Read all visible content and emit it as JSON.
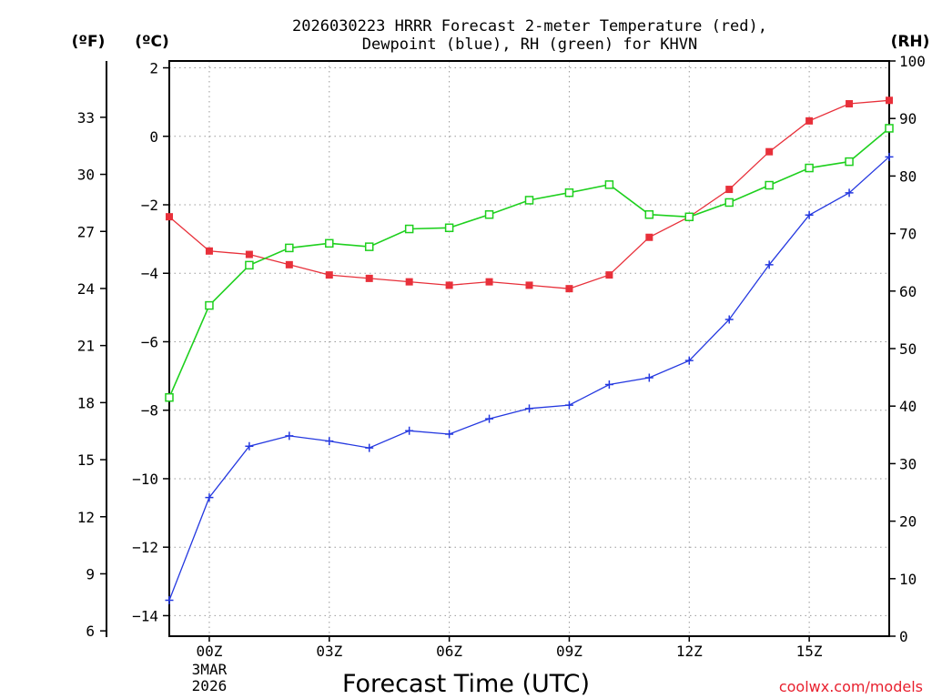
{
  "chart_data": {
    "type": "line",
    "title_lines": [
      "2026030223 HRRR Forecast 2-meter Temperature (red),",
      "Dewpoint (blue), RH (green) for KHVN"
    ],
    "xlabel": "Forecast Time (UTC)",
    "attribution": "coolwx.com/models",
    "units": {
      "fahrenheit": "(ºF)",
      "celsius": "(ºC)",
      "rh": "(RH)"
    },
    "x_range": [
      -1,
      17
    ],
    "x_ticks": [
      {
        "x": 0,
        "label": "00Z",
        "sublabels": [
          "3MAR",
          "2026"
        ]
      },
      {
        "x": 3,
        "label": "03Z",
        "sublabels": []
      },
      {
        "x": 6,
        "label": "06Z",
        "sublabels": []
      },
      {
        "x": 9,
        "label": "09Z",
        "sublabels": []
      },
      {
        "x": 12,
        "label": "12Z",
        "sublabels": []
      },
      {
        "x": 15,
        "label": "15Z",
        "sublabels": []
      }
    ],
    "y_celsius": {
      "range": [
        -14.6,
        2.2
      ],
      "ticks": [
        2,
        0,
        -2,
        -4,
        -6,
        -8,
        -10,
        -12,
        -14
      ],
      "tick_labels": [
        "2",
        "0",
        "−2",
        "−4",
        "−6",
        "−8",
        "−10",
        "−12",
        "−14"
      ]
    },
    "y_fahrenheit": {
      "ticks": [
        33,
        30,
        27,
        24,
        21,
        18,
        15,
        12,
        9,
        6
      ],
      "tick_labels": [
        "33",
        "30",
        "27",
        "24",
        "21",
        "18",
        "15",
        "12",
        "9",
        "6"
      ]
    },
    "y_rh": {
      "range": [
        0,
        100
      ],
      "ticks": [
        100,
        90,
        80,
        70,
        60,
        50,
        40,
        30,
        20,
        10,
        0
      ],
      "tick_labels": [
        "100",
        "90",
        "80",
        "70",
        "60",
        "50",
        "40",
        "30",
        "20",
        "10",
        "0"
      ]
    },
    "grid": true,
    "x": [
      -1,
      0,
      1,
      2,
      3,
      4,
      5,
      6,
      7,
      8,
      9,
      10,
      11,
      12,
      13,
      14,
      15,
      16,
      17
    ],
    "series": [
      {
        "name": "Temperature",
        "axis": "celsius",
        "color": "#e8303a",
        "marker": "filled-square",
        "values": [
          -2.35,
          -3.35,
          -3.45,
          -3.75,
          -4.05,
          -4.15,
          -4.25,
          -4.35,
          -4.25,
          -4.35,
          -4.45,
          -4.05,
          -2.95,
          -2.35,
          -1.55,
          -0.45,
          0.45,
          0.95,
          1.05
        ]
      },
      {
        "name": "Dewpoint",
        "axis": "celsius",
        "color": "#2438e0",
        "marker": "plus",
        "values": [
          -13.55,
          -10.55,
          -9.05,
          -8.75,
          -8.9,
          -9.1,
          -8.6,
          -8.7,
          -8.25,
          -7.95,
          -7.85,
          -7.25,
          -7.05,
          -6.55,
          -5.35,
          -3.75,
          -2.3,
          -1.65,
          -0.6
        ]
      },
      {
        "name": "RH",
        "axis": "rh",
        "color": "#1ed01e",
        "marker": "open-square",
        "values": [
          41.5,
          57.5,
          64.5,
          67.5,
          68.3,
          67.7,
          70.8,
          71,
          73.3,
          75.8,
          77.1,
          78.5,
          73.3,
          72.9,
          75.4,
          78.4,
          81.4,
          82.5,
          88.3
        ]
      }
    ]
  }
}
